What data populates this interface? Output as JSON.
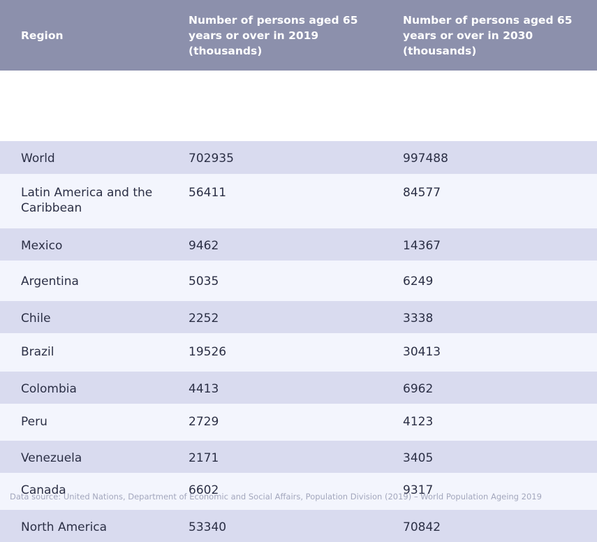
{
  "chart_data": {
    "type": "table",
    "columns": [
      "Region",
      "Number of persons aged 65 years or over in 2019 (thousands)",
      "Number of persons aged 65 years or over in 2030 (thousands)"
    ],
    "rows": [
      {
        "region": "World",
        "y2019": "702935",
        "y2030": "997488"
      },
      {
        "region": "Latin America and the Caribbean",
        "y2019": "56411",
        "y2030": "84577"
      },
      {
        "region": "Mexico",
        "y2019": "9462",
        "y2030": "14367"
      },
      {
        "region": "Argentina",
        "y2019": "5035",
        "y2030": "6249"
      },
      {
        "region": "Chile",
        "y2019": "2252",
        "y2030": "3338"
      },
      {
        "region": "Brazil",
        "y2019": "19526",
        "y2030": "30413"
      },
      {
        "region": "Colombia",
        "y2019": "4413",
        "y2030": "6962"
      },
      {
        "region": "Peru",
        "y2019": "2729",
        "y2030": "4123"
      },
      {
        "region": "Venezuela",
        "y2019": "2171",
        "y2030": "3405"
      },
      {
        "region": "Canada",
        "y2019": "6602",
        "y2030": "9317"
      },
      {
        "region": "North America",
        "y2019": "53340",
        "y2030": "70842"
      }
    ]
  },
  "source_note": "Data source: United Nations, Department of Economic and Social Affairs, Population Division (2019)  – World Population Ageing 2019",
  "colors": {
    "header_bg": "#8c90ac",
    "row_shaded": "#d9dbef",
    "row_light": "#f3f5fd",
    "text": "#2b2f45",
    "source_text": "#a3a7bd"
  }
}
